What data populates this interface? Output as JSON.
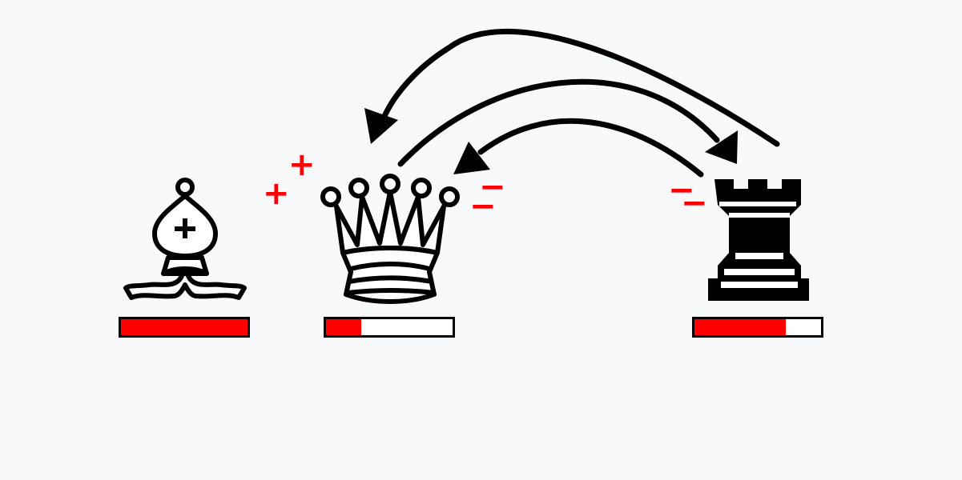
{
  "pieces": [
    {
      "name": "bishop",
      "health": 1.0
    },
    {
      "name": "queen",
      "health": 0.28
    },
    {
      "name": "rook",
      "health": 0.72
    }
  ],
  "signs": {
    "plus_1": "+",
    "plus_2": "+",
    "minus_1": "−",
    "minus_2": "−",
    "minus_3": "−",
    "minus_4": "−"
  },
  "colors": {
    "background": "#f8f9fb",
    "health_fill": "#ff0000",
    "health_empty": "#ffffff",
    "outline": "#000000",
    "sign": "#ff0000"
  },
  "icons": [
    "bishop-icon",
    "queen-icon",
    "rook-icon",
    "arrow-icon"
  ]
}
